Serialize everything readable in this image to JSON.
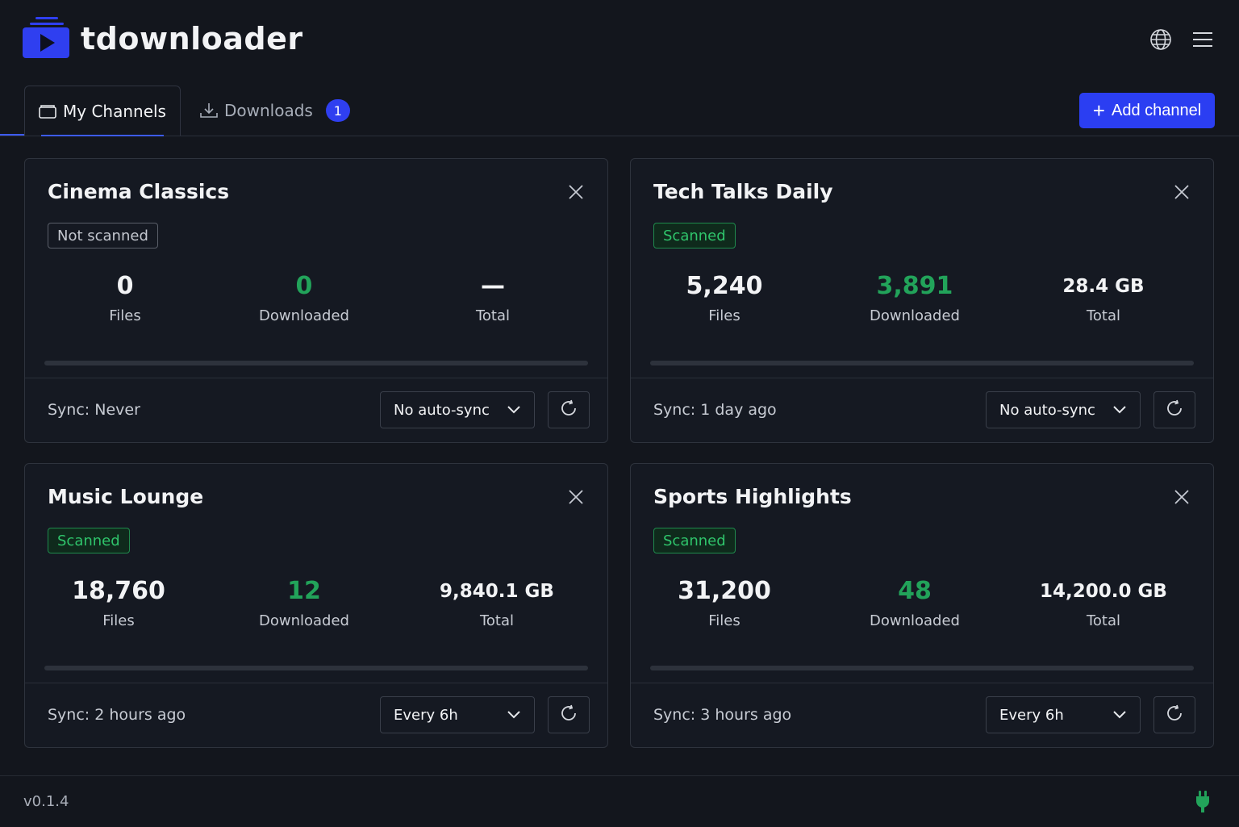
{
  "app": {
    "name": "tdownloader",
    "version": "v0.1.4"
  },
  "header": {
    "icons": [
      "globe-icon",
      "hamburger-menu-icon"
    ]
  },
  "tabs": [
    {
      "label": "My Channels",
      "icon": "folder-icon",
      "active": true
    },
    {
      "label": "Downloads",
      "icon": "download-icon",
      "badge": "1",
      "active": false
    }
  ],
  "actions": {
    "add_channel": "Add channel"
  },
  "colors": {
    "accent": "#2b3ef2",
    "success": "#22a35a",
    "background": "#13161d"
  },
  "channels": [
    {
      "title": "Cinema Classics",
      "status": "Not scanned",
      "status_type": "not",
      "files": "0",
      "downloaded": "0",
      "total": "—",
      "files_label": "Files",
      "downloaded_label": "Downloaded",
      "total_label": "Total",
      "progress": 0,
      "sync": "Sync: Never",
      "auto_sync": "No auto-sync"
    },
    {
      "title": "Tech Talks Daily",
      "status": "Scanned",
      "status_type": "scanned",
      "files": "5,240",
      "downloaded": "3,891",
      "total": "28.4 GB",
      "files_label": "Files",
      "downloaded_label": "Downloaded",
      "total_label": "Total",
      "progress": 0,
      "sync": "Sync: 1 day ago",
      "auto_sync": "No auto-sync"
    },
    {
      "title": "Music Lounge",
      "status": "Scanned",
      "status_type": "scanned",
      "files": "18,760",
      "downloaded": "12",
      "total": "9,840.1 GB",
      "files_label": "Files",
      "downloaded_label": "Downloaded",
      "total_label": "Total",
      "progress": 0,
      "sync": "Sync: 2 hours ago",
      "auto_sync": "Every 6h"
    },
    {
      "title": "Sports Highlights",
      "status": "Scanned",
      "status_type": "scanned",
      "files": "31,200",
      "downloaded": "48",
      "total": "14,200.0 GB",
      "files_label": "Files",
      "downloaded_label": "Downloaded",
      "total_label": "Total",
      "progress": 0,
      "sync": "Sync: 3 hours ago",
      "auto_sync": "Every 6h"
    }
  ],
  "footer": {
    "connection_icon": "plug-icon"
  }
}
